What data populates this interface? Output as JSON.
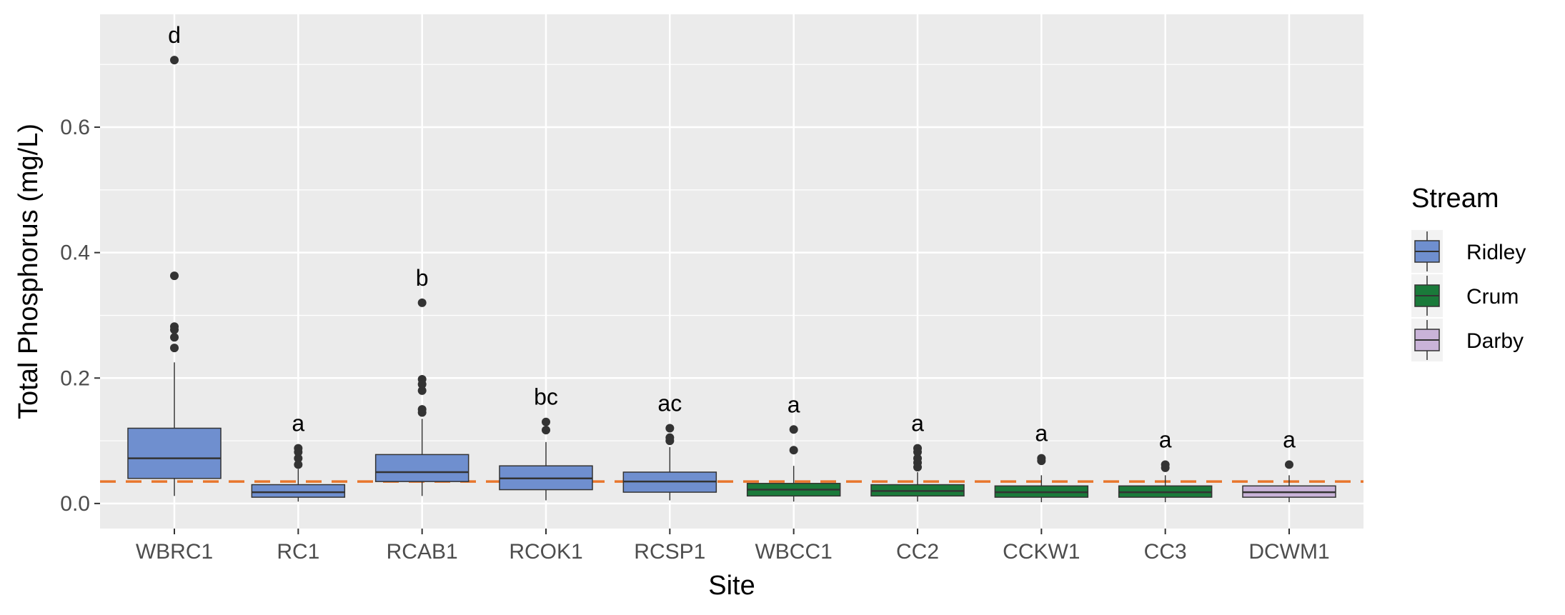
{
  "chart_data": {
    "type": "box",
    "xlabel": "Site",
    "ylabel": "Total Phosphorus (mg/L)",
    "ylim": [
      -0.04,
      0.78
    ],
    "yticks": [
      0.0,
      0.2,
      0.4,
      0.6
    ],
    "ytick_labels": [
      "0.0",
      "0.2",
      "0.4",
      "0.6"
    ],
    "threshold": {
      "value": 0.035,
      "color": "#e8762c",
      "style": "dashed"
    },
    "legend": {
      "title": "Stream",
      "position": "right",
      "entries": [
        {
          "name": "Ridley",
          "color": "#6f8fcf"
        },
        {
          "name": "Crum",
          "color": "#1a7a3a"
        },
        {
          "name": "Darby",
          "color": "#c9b3d8"
        }
      ]
    },
    "boxes": [
      {
        "site": "WBRC1",
        "stream": "Ridley",
        "q1": 0.04,
        "median": 0.072,
        "q3": 0.12,
        "whisker_low": 0.012,
        "whisker_high": 0.225,
        "outliers": [
          0.707,
          0.363,
          0.282,
          0.277,
          0.265,
          0.248
        ],
        "letter": "d"
      },
      {
        "site": "RC1",
        "stream": "Ridley",
        "q1": 0.01,
        "median": 0.018,
        "q3": 0.03,
        "whisker_low": 0.003,
        "whisker_high": 0.055,
        "outliers": [
          0.088,
          0.082,
          0.072,
          0.062
        ],
        "letter": "a"
      },
      {
        "site": "RCAB1",
        "stream": "Ridley",
        "q1": 0.035,
        "median": 0.05,
        "q3": 0.078,
        "whisker_low": 0.012,
        "whisker_high": 0.135,
        "outliers": [
          0.32,
          0.198,
          0.19,
          0.18,
          0.15,
          0.145
        ],
        "letter": "b"
      },
      {
        "site": "RCOK1",
        "stream": "Ridley",
        "q1": 0.022,
        "median": 0.04,
        "q3": 0.06,
        "whisker_low": 0.005,
        "whisker_high": 0.098,
        "outliers": [
          0.13,
          0.117
        ],
        "letter": "bc"
      },
      {
        "site": "RCSP1",
        "stream": "Ridley",
        "q1": 0.018,
        "median": 0.035,
        "q3": 0.05,
        "whisker_low": 0.005,
        "whisker_high": 0.09,
        "outliers": [
          0.12,
          0.105,
          0.1
        ],
        "letter": "ac"
      },
      {
        "site": "WBCC1",
        "stream": "Crum",
        "q1": 0.012,
        "median": 0.022,
        "q3": 0.032,
        "whisker_low": 0.003,
        "whisker_high": 0.06,
        "outliers": [
          0.118,
          0.085
        ],
        "letter": "a"
      },
      {
        "site": "CC2",
        "stream": "Crum",
        "q1": 0.012,
        "median": 0.02,
        "q3": 0.03,
        "whisker_low": 0.003,
        "whisker_high": 0.05,
        "outliers": [
          0.088,
          0.082,
          0.072,
          0.065,
          0.058
        ],
        "letter": "a"
      },
      {
        "site": "CCKW1",
        "stream": "Crum",
        "q1": 0.01,
        "median": 0.018,
        "q3": 0.028,
        "whisker_low": 0.002,
        "whisker_high": 0.045,
        "outliers": [
          0.072,
          0.068
        ],
        "letter": "a"
      },
      {
        "site": "CC3",
        "stream": "Crum",
        "q1": 0.01,
        "median": 0.018,
        "q3": 0.028,
        "whisker_low": 0.002,
        "whisker_high": 0.045,
        "outliers": [
          0.062,
          0.057
        ],
        "letter": "a"
      },
      {
        "site": "DCWM1",
        "stream": "Darby",
        "q1": 0.01,
        "median": 0.018,
        "q3": 0.028,
        "whisker_low": 0.002,
        "whisker_high": 0.045,
        "outliers": [
          0.062
        ],
        "letter": "a"
      }
    ]
  }
}
